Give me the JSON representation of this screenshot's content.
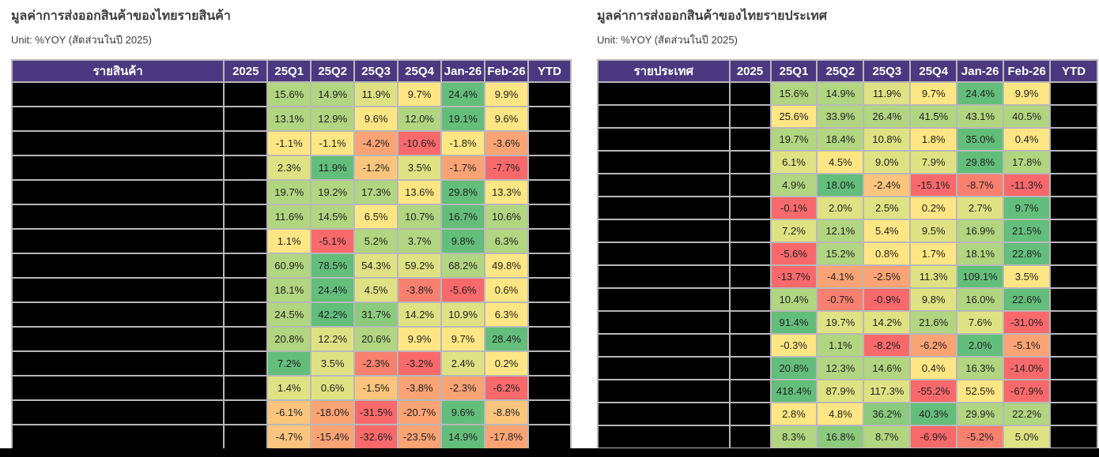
{
  "palette": {
    "R": "#F8696B",
    "OR": "#F8806F",
    "O": "#FAA374",
    "YO": "#FCC57D",
    "Y": "#FDE683",
    "YG": "#DFE283",
    "LG": "#B1D580",
    "MG": "#8CCA7D",
    "G": "#63BE7B"
  },
  "colors": {
    "header_bg": "#4A3981",
    "header_text": "#FFFFFF",
    "grid": "#B8B8B8",
    "redacted": "#000000",
    "title_text": "#3D3D3D"
  },
  "chart_data": [
    {
      "type": "table",
      "title": "มูลค่าการส่งออกสินค้าของไทยรายสินค้า",
      "subtitle": "Unit: %YOY (สัดส่วนในปี 2025)",
      "columns": [
        "รายสินค้า",
        "2025",
        "25Q1",
        "25Q2",
        "25Q3",
        "25Q4",
        "Jan-26",
        "Feb-26",
        "YTD"
      ],
      "redacted_col_indices": [
        0,
        1,
        8
      ],
      "rows": [
        {
          "values": [
            15.6,
            14.9,
            11.9,
            9.7,
            24.4,
            9.9
          ],
          "colors": [
            "LG",
            "LG",
            "YG",
            "Y",
            "G",
            "Y"
          ]
        },
        {
          "values": [
            13.1,
            12.9,
            9.6,
            12.0,
            19.1,
            9.6
          ],
          "colors": [
            "LG",
            "LG",
            "Y",
            "LG",
            "G",
            "Y"
          ]
        },
        {
          "values": [
            -1.1,
            -1.1,
            -4.2,
            -10.6,
            -1.8,
            -3.6
          ],
          "colors": [
            "Y",
            "Y",
            "O",
            "R",
            "Y",
            "O"
          ]
        },
        {
          "values": [
            2.3,
            11.9,
            -1.2,
            3.5,
            -1.7,
            -7.7
          ],
          "colors": [
            "YG",
            "G",
            "YO",
            "YG",
            "O",
            "R"
          ]
        },
        {
          "values": [
            19.7,
            19.2,
            17.3,
            13.6,
            29.8,
            13.3
          ],
          "colors": [
            "LG",
            "LG",
            "LG",
            "Y",
            "G",
            "Y"
          ]
        },
        {
          "values": [
            11.6,
            14.5,
            6.5,
            10.7,
            16.7,
            10.6
          ],
          "colors": [
            "LG",
            "LG",
            "Y",
            "LG",
            "G",
            "LG"
          ]
        },
        {
          "values": [
            1.1,
            -5.1,
            5.2,
            3.7,
            9.8,
            6.3
          ],
          "colors": [
            "Y",
            "R",
            "LG",
            "LG",
            "G",
            "LG"
          ]
        },
        {
          "values": [
            60.9,
            78.5,
            54.3,
            59.2,
            68.2,
            49.8
          ],
          "colors": [
            "LG",
            "G",
            "YG",
            "YG",
            "LG",
            "Y"
          ]
        },
        {
          "values": [
            18.1,
            24.4,
            4.5,
            -3.8,
            -5.6,
            0.6
          ],
          "colors": [
            "LG",
            "G",
            "YG",
            "OR",
            "R",
            "Y"
          ]
        },
        {
          "values": [
            24.5,
            42.2,
            31.7,
            14.2,
            10.9,
            6.3
          ],
          "colors": [
            "LG",
            "G",
            "MG",
            "YG",
            "YG",
            "Y"
          ]
        },
        {
          "values": [
            20.8,
            12.2,
            20.6,
            9.9,
            9.7,
            28.4
          ],
          "colors": [
            "LG",
            "YG",
            "LG",
            "Y",
            "Y",
            "G"
          ]
        },
        {
          "values": [
            7.2,
            3.5,
            -2.3,
            -3.2,
            2.4,
            0.2
          ],
          "colors": [
            "G",
            "YG",
            "OR",
            "R",
            "YG",
            "Y"
          ]
        },
        {
          "values": [
            1.4,
            0.6,
            -1.5,
            -3.8,
            -2.3,
            -6.2
          ],
          "colors": [
            "YG",
            "YG",
            "YO",
            "O",
            "O",
            "R"
          ]
        },
        {
          "values": [
            -6.1,
            -18.0,
            -31.5,
            -20.7,
            9.6,
            -8.8
          ],
          "colors": [
            "YO",
            "O",
            "R",
            "O",
            "G",
            "YO"
          ]
        },
        {
          "values": [
            -4.7,
            -15.4,
            -32.6,
            -23.5,
            14.9,
            -17.8
          ],
          "colors": [
            "YO",
            "O",
            "R",
            "O",
            "G",
            "O"
          ]
        }
      ]
    },
    {
      "type": "table",
      "title": "มูลค่าการส่งออกสินค้าของไทยรายประเทศ",
      "subtitle": "Unit: %YOY (สัดส่วนในปี 2025)",
      "columns": [
        "รายประเทศ",
        "2025",
        "25Q1",
        "25Q2",
        "25Q3",
        "25Q4",
        "Jan-26",
        "Feb-26",
        "YTD"
      ],
      "redacted_col_indices": [
        0,
        1,
        8
      ],
      "rows": [
        {
          "values": [
            15.6,
            14.9,
            11.9,
            9.7,
            24.4,
            9.9
          ],
          "colors": [
            "LG",
            "LG",
            "YG",
            "Y",
            "G",
            "Y"
          ]
        },
        {
          "values": [
            25.6,
            33.9,
            26.4,
            41.5,
            43.1,
            40.5
          ],
          "colors": [
            "Y",
            "LG",
            "LG",
            "LG",
            "LG",
            "LG"
          ]
        },
        {
          "values": [
            19.7,
            18.4,
            10.8,
            1.8,
            35.0,
            0.4
          ],
          "colors": [
            "LG",
            "LG",
            "YG",
            "Y",
            "G",
            "Y"
          ]
        },
        {
          "values": [
            6.1,
            4.5,
            9.0,
            7.9,
            29.8,
            17.8
          ],
          "colors": [
            "YG",
            "Y",
            "YG",
            "YG",
            "G",
            "LG"
          ]
        },
        {
          "values": [
            4.9,
            18.0,
            -2.4,
            -15.1,
            -8.7,
            -11.3
          ],
          "colors": [
            "LG",
            "G",
            "YO",
            "R",
            "OR",
            "R"
          ]
        },
        {
          "values": [
            -0.1,
            2.0,
            2.5,
            0.2,
            2.7,
            9.7
          ],
          "colors": [
            "R",
            "YG",
            "YG",
            "Y",
            "YG",
            "G"
          ]
        },
        {
          "values": [
            7.2,
            12.1,
            5.4,
            9.5,
            16.9,
            21.5
          ],
          "colors": [
            "YG",
            "LG",
            "Y",
            "YG",
            "LG",
            "G"
          ]
        },
        {
          "values": [
            -5.6,
            15.2,
            0.8,
            1.7,
            18.1,
            22.8
          ],
          "colors": [
            "R",
            "LG",
            "Y",
            "Y",
            "LG",
            "G"
          ]
        },
        {
          "values": [
            -13.7,
            -4.1,
            -2.5,
            11.3,
            109.1,
            3.5
          ],
          "colors": [
            "R",
            "O",
            "O",
            "YG",
            "G",
            "Y"
          ]
        },
        {
          "values": [
            10.4,
            -0.7,
            -0.9,
            9.8,
            16.0,
            22.6
          ],
          "colors": [
            "LG",
            "OR",
            "R",
            "YG",
            "LG",
            "G"
          ]
        },
        {
          "values": [
            91.4,
            19.7,
            14.2,
            21.6,
            7.6,
            -31.0
          ],
          "colors": [
            "G",
            "YG",
            "YG",
            "LG",
            "YG",
            "R"
          ]
        },
        {
          "values": [
            -0.3,
            1.1,
            -8.2,
            -6.2,
            2.0,
            -5.1
          ],
          "colors": [
            "Y",
            "LG",
            "R",
            "O",
            "G",
            "O"
          ]
        },
        {
          "values": [
            20.8,
            12.3,
            14.6,
            0.4,
            16.3,
            -14.0
          ],
          "colors": [
            "G",
            "LG",
            "LG",
            "Y",
            "LG",
            "R"
          ]
        },
        {
          "values": [
            418.4,
            87.9,
            117.3,
            -55.2,
            52.5,
            -67.9
          ],
          "colors": [
            "G",
            "YG",
            "YG",
            "R",
            "Y",
            "R"
          ]
        },
        {
          "values": [
            2.8,
            4.8,
            36.2,
            40.3,
            29.9,
            22.2
          ],
          "colors": [
            "Y",
            "Y",
            "MG",
            "G",
            "LG",
            "LG"
          ]
        },
        {
          "values": [
            8.3,
            16.8,
            8.7,
            -6.9,
            -5.2,
            5.0
          ],
          "colors": [
            "LG",
            "MG",
            "LG",
            "R",
            "OR",
            "YG"
          ]
        }
      ]
    }
  ]
}
